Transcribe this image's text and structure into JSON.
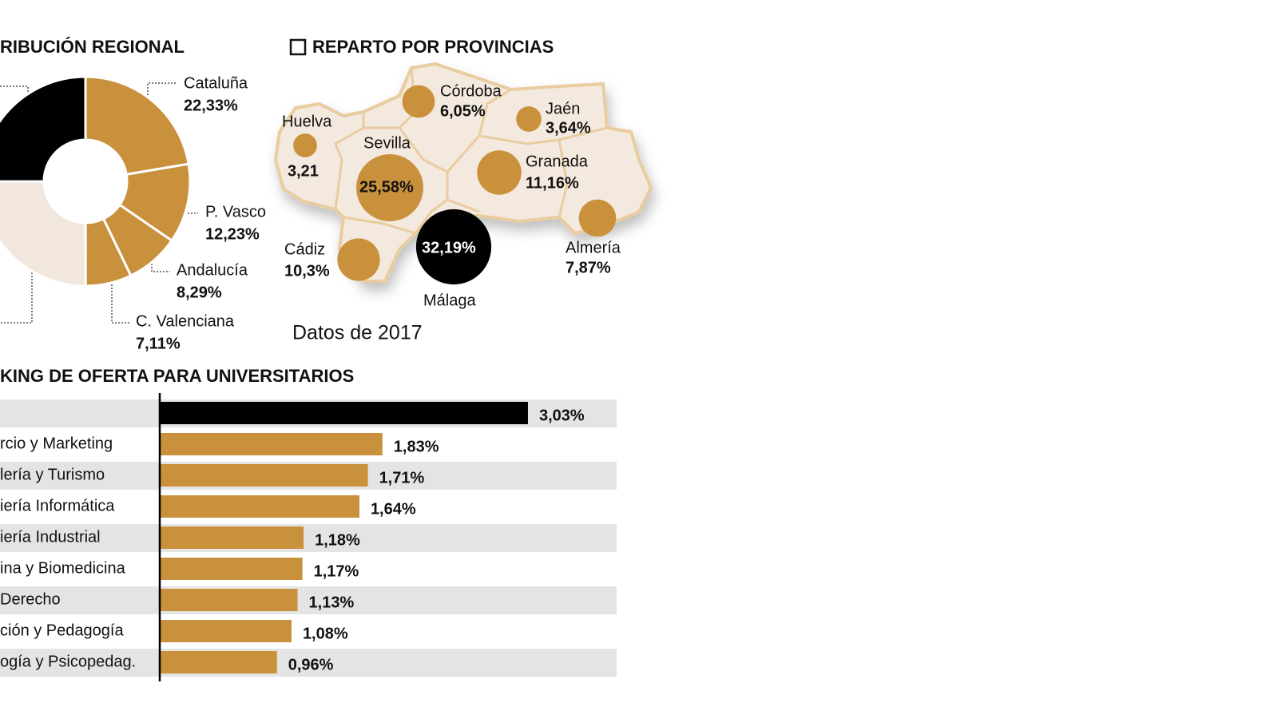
{
  "chart_data": [
    {
      "type": "pie",
      "title": "RIBUCIÓN REGIONAL",
      "categories": [
        "Cataluña",
        "P. Vasco",
        "Andalucía",
        "C. Valenciana",
        null,
        null
      ],
      "values": [
        22.33,
        12.23,
        8.29,
        7.11,
        25,
        25
      ],
      "value_labels": [
        "22,33%",
        "12,23%",
        "8,29%",
        "7,11%",
        null,
        null
      ],
      "colors": [
        "#c9913c",
        "#c9913c",
        "#c9913c",
        "#c9913c",
        "#f2e7dd",
        "#000000"
      ]
    },
    {
      "type": "bubble",
      "title": "REPARTO POR PROVINCIAS",
      "note": "Datos de 2017",
      "categories": [
        "Córdoba",
        "Jaén",
        "Huelva",
        "Sevilla",
        "Granada",
        "Almería",
        "Cádiz",
        "Málaga"
      ],
      "values": [
        6.05,
        3.64,
        3.21,
        25.58,
        11.16,
        7.87,
        10.3,
        32.19
      ],
      "value_labels": [
        "6,05%",
        "3,64%",
        "3,21",
        "25,58%",
        "11,16%",
        "7,87%",
        "10,3%",
        "32,19%"
      ],
      "colors": [
        "#c9913c",
        "#c9913c",
        "#c9913c",
        "#c9913c",
        "#c9913c",
        "#c9913c",
        "#c9913c",
        "#000000"
      ]
    },
    {
      "type": "bar",
      "orientation": "horizontal",
      "title": "KING DE OFERTA PARA UNIVERSITARIOS",
      "categories": [
        null,
        "rcio y Marketing",
        "lería y Turismo",
        "iería Informática",
        "iería Industrial",
        "ina y Biomedicina",
        " Derecho",
        "ción y Pedagogía",
        "ogía y Psicopedag."
      ],
      "values": [
        3.03,
        1.83,
        1.71,
        1.64,
        1.18,
        1.17,
        1.13,
        1.08,
        0.96
      ],
      "value_labels": [
        "3,03%",
        "1,83%",
        "1,71%",
        "1,64%",
        "1,18%",
        "1,17%",
        "1,13%",
        "1,08%",
        "0,96%"
      ],
      "colors": [
        "#000000",
        "#c9913c",
        "#c9913c",
        "#c9913c",
        "#c9913c",
        "#c9913c",
        "#c9913c",
        "#c9913c",
        "#c9913c"
      ],
      "xlim": [
        0,
        3.5
      ]
    }
  ]
}
